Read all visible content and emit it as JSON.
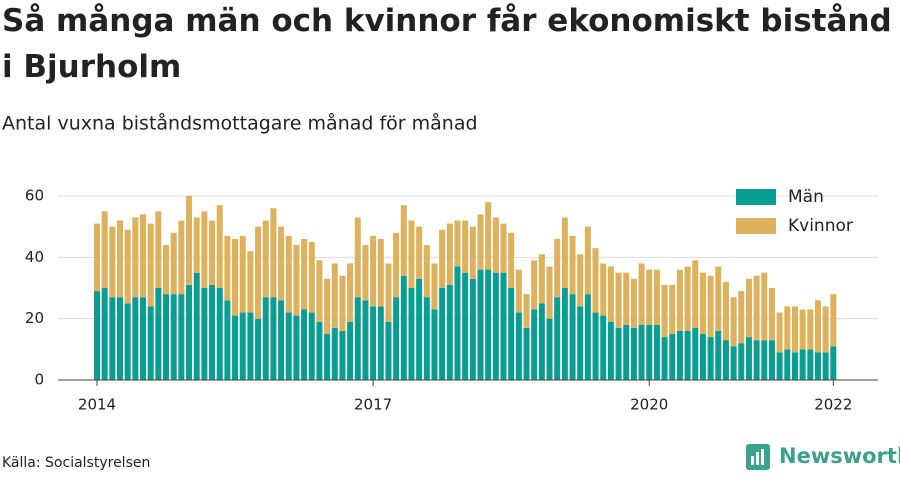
{
  "chart_data": {
    "type": "stacked-bar",
    "title": "Så många män och kvinnor får ekonomiskt bistånd i Bjurholm",
    "subtitle": "Antal vuxna biståndsmottagare månad för månad",
    "source": "Källa: Socialstyrelsen",
    "brand": "Newsworthy",
    "categories": [
      "2014",
      null,
      null,
      null,
      null,
      null,
      null,
      null,
      null,
      null,
      null,
      null,
      null,
      null,
      null,
      null,
      null,
      null,
      null,
      null,
      null,
      null,
      null,
      null,
      null,
      null,
      null,
      null,
      null,
      null,
      null,
      null,
      null,
      null,
      null,
      null,
      "2017",
      null,
      null,
      null,
      null,
      null,
      null,
      null,
      null,
      null,
      null,
      null,
      null,
      null,
      null,
      null,
      null,
      null,
      null,
      null,
      null,
      null,
      null,
      null,
      null,
      null,
      null,
      null,
      null,
      null,
      null,
      null,
      null,
      null,
      null,
      null,
      "2020",
      null,
      null,
      null,
      null,
      null,
      null,
      null,
      null,
      null,
      null,
      null,
      null,
      null,
      null,
      null,
      null,
      null,
      null,
      null,
      null,
      null,
      null,
      null,
      "2022"
    ],
    "series": [
      {
        "name": "Män",
        "color": "#0a9e92",
        "values": [
          29,
          30,
          27,
          27,
          25,
          27,
          27,
          24,
          30,
          28,
          28,
          28,
          31,
          35,
          30,
          31,
          30,
          26,
          21,
          22,
          22,
          20,
          27,
          27,
          26,
          22,
          21,
          23,
          22,
          19,
          15,
          17,
          16,
          19,
          27,
          26,
          24,
          24,
          19,
          27,
          34,
          30,
          33,
          27,
          23,
          30,
          31,
          37,
          35,
          33,
          36,
          36,
          35,
          35,
          30,
          22,
          17,
          23,
          25,
          20,
          27,
          30,
          28,
          24,
          28,
          22,
          21,
          19,
          17,
          18,
          17,
          18,
          18,
          18,
          14,
          15,
          16,
          16,
          17,
          15,
          14,
          16,
          13,
          11,
          12,
          14,
          13,
          13,
          13,
          9,
          10,
          9,
          10,
          10,
          9,
          9,
          11
        ]
      },
      {
        "name": "Kvinnor",
        "color": "#deb15c",
        "values": [
          22,
          25,
          23,
          25,
          24,
          26,
          27,
          27,
          25,
          16,
          20,
          24,
          29,
          18,
          25,
          21,
          27,
          21,
          25,
          25,
          20,
          30,
          25,
          29,
          24,
          25,
          23,
          23,
          23,
          20,
          18,
          21,
          18,
          19,
          26,
          18,
          23,
          22,
          19,
          21,
          23,
          22,
          17,
          17,
          15,
          19,
          20,
          15,
          17,
          17,
          18,
          22,
          18,
          16,
          18,
          14,
          11,
          16,
          16,
          17,
          19,
          23,
          19,
          17,
          22,
          21,
          17,
          18,
          18,
          17,
          16,
          20,
          18,
          18,
          17,
          16,
          20,
          21,
          22,
          20,
          20,
          21,
          19,
          16,
          17,
          19,
          21,
          22,
          17,
          13,
          14,
          15,
          13,
          13,
          17,
          15,
          17
        ]
      }
    ],
    "ylim": [
      0,
      60
    ],
    "yticks": [
      0,
      20,
      40,
      60
    ],
    "grid": true,
    "legend": "top-right"
  }
}
